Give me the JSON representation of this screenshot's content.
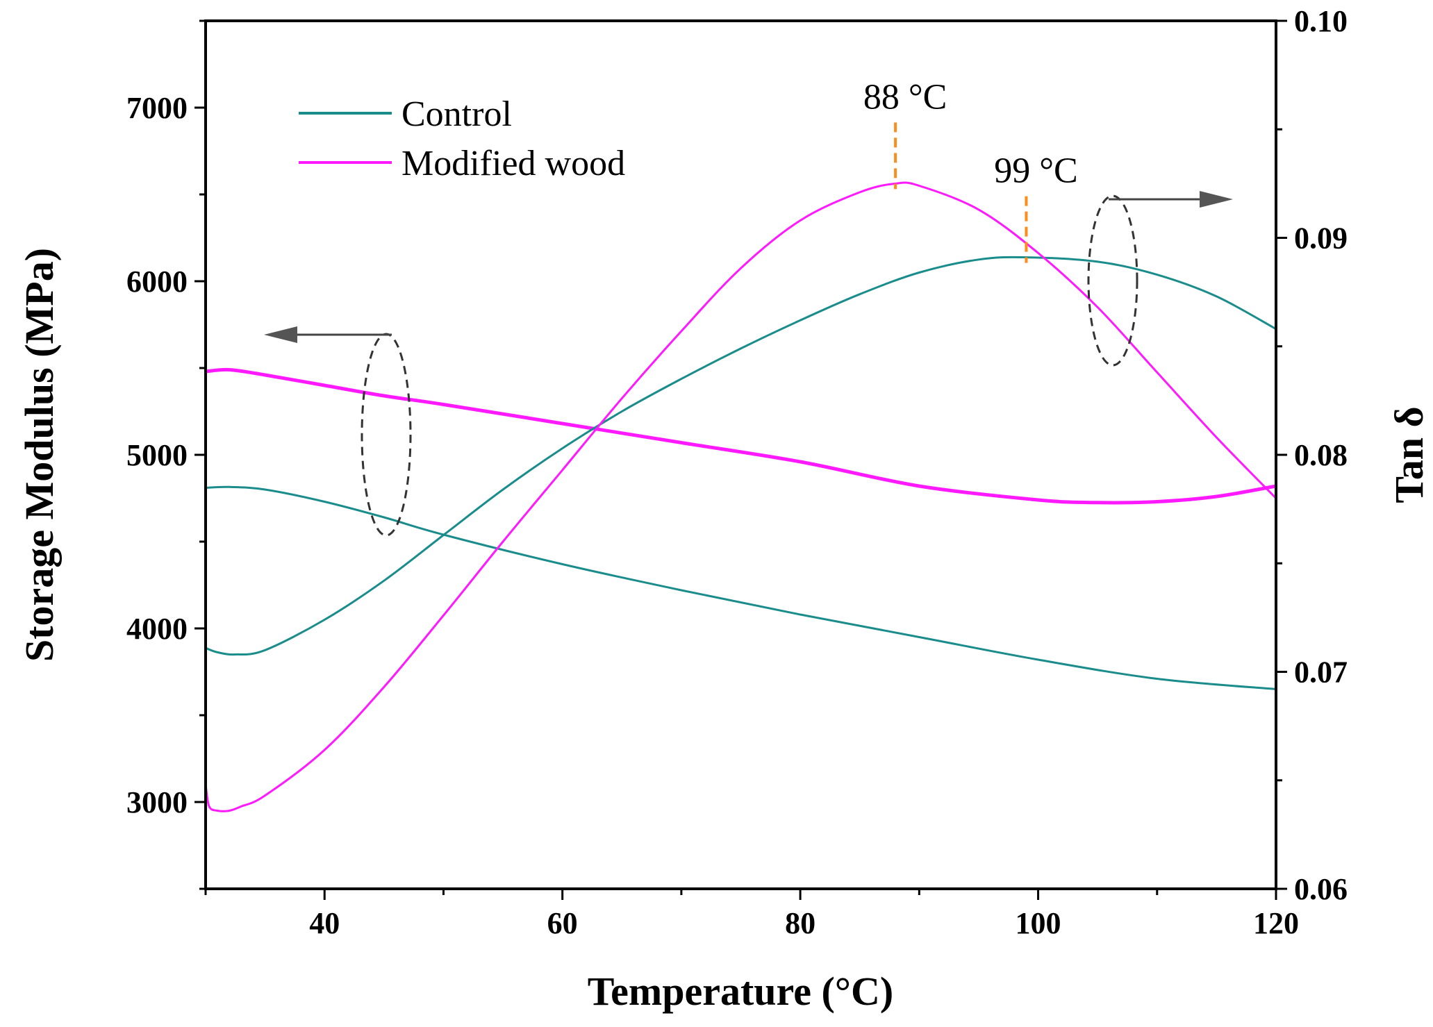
{
  "chart_data": {
    "type": "line",
    "xlabel": "Temperature (°C)",
    "ylabel_left": "Storage Modulus (MPa)",
    "ylabel_right": "Tan δ",
    "xlim": [
      30,
      120
    ],
    "ylim_left": [
      2500,
      7500
    ],
    "ylim_right": [
      0.06,
      0.1
    ],
    "x_ticks": [
      40,
      60,
      80,
      100,
      120
    ],
    "y_left_ticks": [
      3000,
      4000,
      5000,
      6000,
      7000
    ],
    "y_right_ticks": [
      "0.06",
      "0.07",
      "0.08",
      "0.09",
      "0.10"
    ],
    "legend": [
      {
        "name": "Control",
        "color": "#1a8c8c"
      },
      {
        "name": "Modified wood",
        "color": "#ff19ff"
      }
    ],
    "series": [
      {
        "name": "Control storage modulus",
        "group": "Control",
        "axis": "left",
        "color": "#1a8c8c",
        "x": [
          30,
          32,
          35,
          40,
          45,
          50,
          60,
          70,
          80,
          90,
          100,
          110,
          120
        ],
        "values": [
          4810,
          4815,
          4800,
          4730,
          4640,
          4540,
          4370,
          4220,
          4080,
          3950,
          3820,
          3710,
          3650
        ]
      },
      {
        "name": "Modified wood storage modulus",
        "group": "Modified wood",
        "axis": "left",
        "color": "#ff19ff",
        "x": [
          30,
          32,
          35,
          40,
          45,
          50,
          60,
          70,
          80,
          90,
          100,
          105,
          110,
          115,
          120
        ],
        "values": [
          5480,
          5490,
          5460,
          5400,
          5340,
          5290,
          5180,
          5070,
          4960,
          4820,
          4740,
          4725,
          4730,
          4760,
          4820
        ]
      },
      {
        "name": "Control tan delta",
        "group": "Control",
        "axis": "right",
        "color": "#1a8c8c",
        "x": [
          30,
          31,
          32.5,
          35,
          40,
          45,
          50,
          55,
          60,
          65,
          70,
          75,
          80,
          85,
          90,
          95,
          99,
          105,
          110,
          115,
          120
        ],
        "values": [
          0.0711,
          0.0709,
          0.0708,
          0.071,
          0.0724,
          0.0742,
          0.0763,
          0.0784,
          0.0803,
          0.082,
          0.0835,
          0.0849,
          0.0862,
          0.0874,
          0.0884,
          0.089,
          0.0891,
          0.0889,
          0.0883,
          0.0873,
          0.0858
        ]
      },
      {
        "name": "Modified wood tan delta",
        "group": "Modified wood",
        "axis": "right",
        "color": "#ff19ff",
        "x": [
          30,
          30.3,
          31,
          32,
          33,
          35,
          40,
          45,
          50,
          55,
          60,
          65,
          70,
          75,
          80,
          85,
          88,
          90,
          95,
          100,
          105,
          110,
          115,
          120
        ],
        "values": [
          0.0648,
          0.0638,
          0.0636,
          0.0636,
          0.0638,
          0.0643,
          0.0664,
          0.0693,
          0.0726,
          0.076,
          0.0793,
          0.0826,
          0.0857,
          0.0886,
          0.0908,
          0.0921,
          0.0925,
          0.0924,
          0.0913,
          0.0893,
          0.0868,
          0.0838,
          0.0808,
          0.078
        ]
      }
    ],
    "annotations": [
      {
        "text": "88 °C",
        "x": 88,
        "series": "Modified wood tan delta"
      },
      {
        "text": "99 °C",
        "x": 99,
        "series": "Control tan delta"
      }
    ]
  }
}
